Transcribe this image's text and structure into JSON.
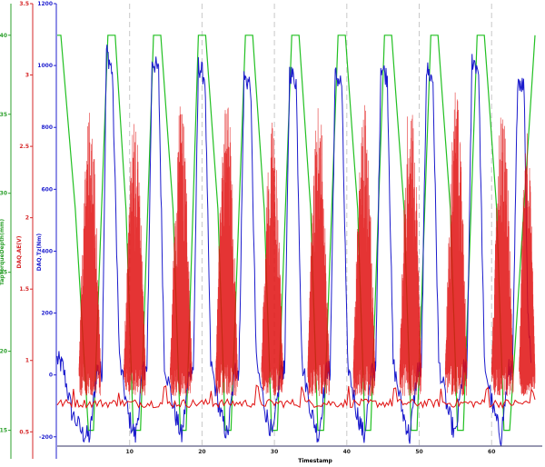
{
  "chart_data": {
    "type": "line",
    "xlabel": "Timestamp",
    "x_ticks": [
      "10",
      "20",
      "30",
      "40",
      "50",
      "60"
    ],
    "xlim": [
      0,
      67
    ],
    "grid_x": true,
    "grid_y": false,
    "axes": [
      {
        "id": "green",
        "label": "TapTorqueDepth(mm)",
        "color": "#2ca02c",
        "ylim": [
          14,
          42
        ],
        "ticks": [
          "15",
          "20",
          "25",
          "30",
          "35",
          "40"
        ]
      },
      {
        "id": "red",
        "label": "DAQ.AE(V)",
        "color": "#d62728",
        "ylim": [
          0.4,
          3.5
        ],
        "ticks": [
          "0.5",
          "1",
          "1.5",
          "2",
          "2.5",
          "3",
          "3.5"
        ]
      },
      {
        "id": "blue",
        "label": "DAQ.Tz(Nm)",
        "color": "#1f1fcf",
        "ylim": [
          -230,
          1200
        ],
        "ticks": [
          "-200",
          "0",
          "200",
          "400",
          "600",
          "800",
          "1000",
          "1200"
        ]
      }
    ],
    "series": [
      {
        "axis": "green",
        "color": "#22c022",
        "points": [
          [
            0,
            40
          ],
          [
            0.5,
            40
          ],
          [
            2.5,
            29
          ],
          [
            4.3,
            15
          ],
          [
            5,
            15
          ],
          [
            7,
            40
          ],
          [
            8,
            40
          ],
          [
            9.5,
            29
          ],
          [
            10.5,
            15
          ],
          [
            11.5,
            15
          ],
          [
            13.3,
            40
          ],
          [
            14.3,
            40
          ],
          [
            16,
            29
          ],
          [
            17,
            15
          ],
          [
            17.8,
            15
          ],
          [
            19.5,
            40
          ],
          [
            20.5,
            40
          ],
          [
            22.2,
            29
          ],
          [
            23.2,
            15
          ],
          [
            24,
            15
          ],
          [
            26,
            40
          ],
          [
            27,
            40
          ],
          [
            28.6,
            29
          ],
          [
            29.6,
            15
          ],
          [
            30.4,
            15
          ],
          [
            32.4,
            40
          ],
          [
            33.4,
            40
          ],
          [
            35,
            29
          ],
          [
            36,
            15
          ],
          [
            36.8,
            15
          ],
          [
            38.8,
            40
          ],
          [
            39.8,
            40
          ],
          [
            41.5,
            29
          ],
          [
            42.5,
            15
          ],
          [
            43.3,
            15
          ],
          [
            45.2,
            40
          ],
          [
            46.2,
            40
          ],
          [
            47.9,
            29
          ],
          [
            48.9,
            15
          ],
          [
            49.7,
            15
          ],
          [
            51.6,
            40
          ],
          [
            52.6,
            40
          ],
          [
            54.3,
            29
          ],
          [
            55.3,
            15
          ],
          [
            56.1,
            15
          ],
          [
            58,
            40
          ],
          [
            59,
            40
          ],
          [
            60.7,
            29
          ],
          [
            61.7,
            15
          ],
          [
            62.5,
            15
          ],
          [
            66,
            40
          ]
        ]
      },
      {
        "axis": "blue",
        "color": "#1a1acc",
        "points": [
          [
            0,
            50
          ],
          [
            0.8,
            25
          ],
          [
            2,
            -120
          ],
          [
            3.5,
            -190
          ],
          [
            4.5,
            -200
          ],
          [
            5.5,
            20
          ],
          [
            6.2,
            10
          ],
          [
            6.8,
            1050
          ],
          [
            7.6,
            980
          ],
          [
            8.6,
            50
          ],
          [
            9.8,
            -130
          ],
          [
            10.8,
            -200
          ],
          [
            11.9,
            20
          ],
          [
            12.4,
            10
          ],
          [
            13.1,
            1020
          ],
          [
            14,
            980
          ],
          [
            14.8,
            40
          ],
          [
            16.2,
            -120
          ],
          [
            17.2,
            -200
          ],
          [
            18.3,
            20
          ],
          [
            18.8,
            10
          ],
          [
            19.5,
            1000
          ],
          [
            20.4,
            960
          ],
          [
            21.2,
            40
          ],
          [
            22.5,
            -120
          ],
          [
            23.5,
            -200
          ],
          [
            24.6,
            20
          ],
          [
            25.1,
            10
          ],
          [
            25.8,
            960
          ],
          [
            26.7,
            940
          ],
          [
            27.5,
            40
          ],
          [
            28.8,
            -120
          ],
          [
            29.8,
            -200
          ],
          [
            30.9,
            20
          ],
          [
            31.4,
            10
          ],
          [
            32.1,
            980
          ],
          [
            33,
            950
          ],
          [
            33.8,
            40
          ],
          [
            35.1,
            -120
          ],
          [
            36.1,
            -200
          ],
          [
            37.2,
            20
          ],
          [
            37.7,
            10
          ],
          [
            38.4,
            970
          ],
          [
            39.3,
            940
          ],
          [
            40.1,
            40
          ],
          [
            41.4,
            -120
          ],
          [
            42.4,
            -200
          ],
          [
            43.5,
            20
          ],
          [
            44,
            10
          ],
          [
            44.7,
            1000
          ],
          [
            45.6,
            960
          ],
          [
            46.4,
            40
          ],
          [
            47.7,
            -120
          ],
          [
            48.7,
            -200
          ],
          [
            49.8,
            20
          ],
          [
            50.3,
            10
          ],
          [
            51,
            990
          ],
          [
            51.9,
            950
          ],
          [
            52.7,
            40
          ],
          [
            54,
            -120
          ],
          [
            55,
            -200
          ],
          [
            56.1,
            20
          ],
          [
            56.6,
            10
          ],
          [
            57.3,
            1020
          ],
          [
            58.2,
            990
          ],
          [
            59,
            40
          ],
          [
            60.3,
            -120
          ],
          [
            61.3,
            -200
          ],
          [
            62.4,
            20
          ],
          [
            62.9,
            10
          ],
          [
            63.6,
            960
          ],
          [
            64.5,
            930
          ],
          [
            65,
            200
          ],
          [
            65.5,
            40
          ]
        ]
      },
      {
        "axis": "red",
        "color": "#e01010",
        "baseline": 0.7,
        "bursts": [
          {
            "start": 3.0,
            "end": 6.0,
            "peak": 2.8
          },
          {
            "start": 9.2,
            "end": 12.2,
            "peak": 2.7
          },
          {
            "start": 15.6,
            "end": 18.6,
            "peak": 2.8
          },
          {
            "start": 21.9,
            "end": 24.9,
            "peak": 2.9
          },
          {
            "start": 28.2,
            "end": 31.2,
            "peak": 2.7
          },
          {
            "start": 34.6,
            "end": 37.6,
            "peak": 2.8
          },
          {
            "start": 40.9,
            "end": 43.9,
            "peak": 2.8
          },
          {
            "start": 47.3,
            "end": 50.3,
            "peak": 2.9
          },
          {
            "start": 53.6,
            "end": 56.6,
            "peak": 2.9
          },
          {
            "start": 60.0,
            "end": 63.0,
            "peak": 2.8
          },
          {
            "start": 63.8,
            "end": 66.0,
            "peak": 2.6
          }
        ]
      }
    ]
  }
}
